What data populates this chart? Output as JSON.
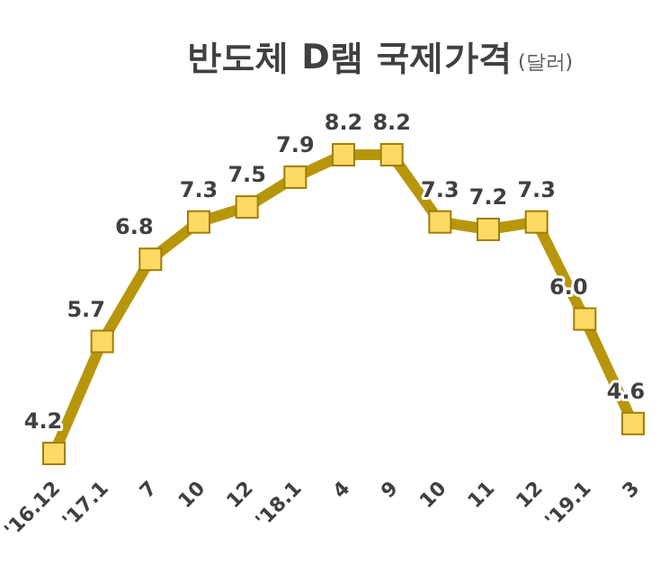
{
  "chart_data": {
    "type": "line",
    "title": "반도체 D램 국제가격",
    "subtitle": "(달러)",
    "categories": [
      "'16.12",
      "'17.1",
      "7",
      "10",
      "12",
      "'18.1",
      "4",
      "9",
      "10",
      "11",
      "12",
      "'19.1",
      "3"
    ],
    "series": [
      {
        "color": "#b8960c",
        "values": [
          4.2,
          5.7,
          6.8,
          7.3,
          7.5,
          7.9,
          8.2,
          8.2,
          7.3,
          7.2,
          7.3,
          6.0,
          4.6
        ],
        "value_labels": [
          "4.2",
          "5.7",
          "6.8",
          "7.3",
          "7.5",
          "7.9",
          "8.2",
          "8.2",
          "7.3",
          "7.2",
          "7.3",
          "6.0",
          "4.6"
        ]
      }
    ],
    "marker": "square",
    "line_style": "solid"
  }
}
